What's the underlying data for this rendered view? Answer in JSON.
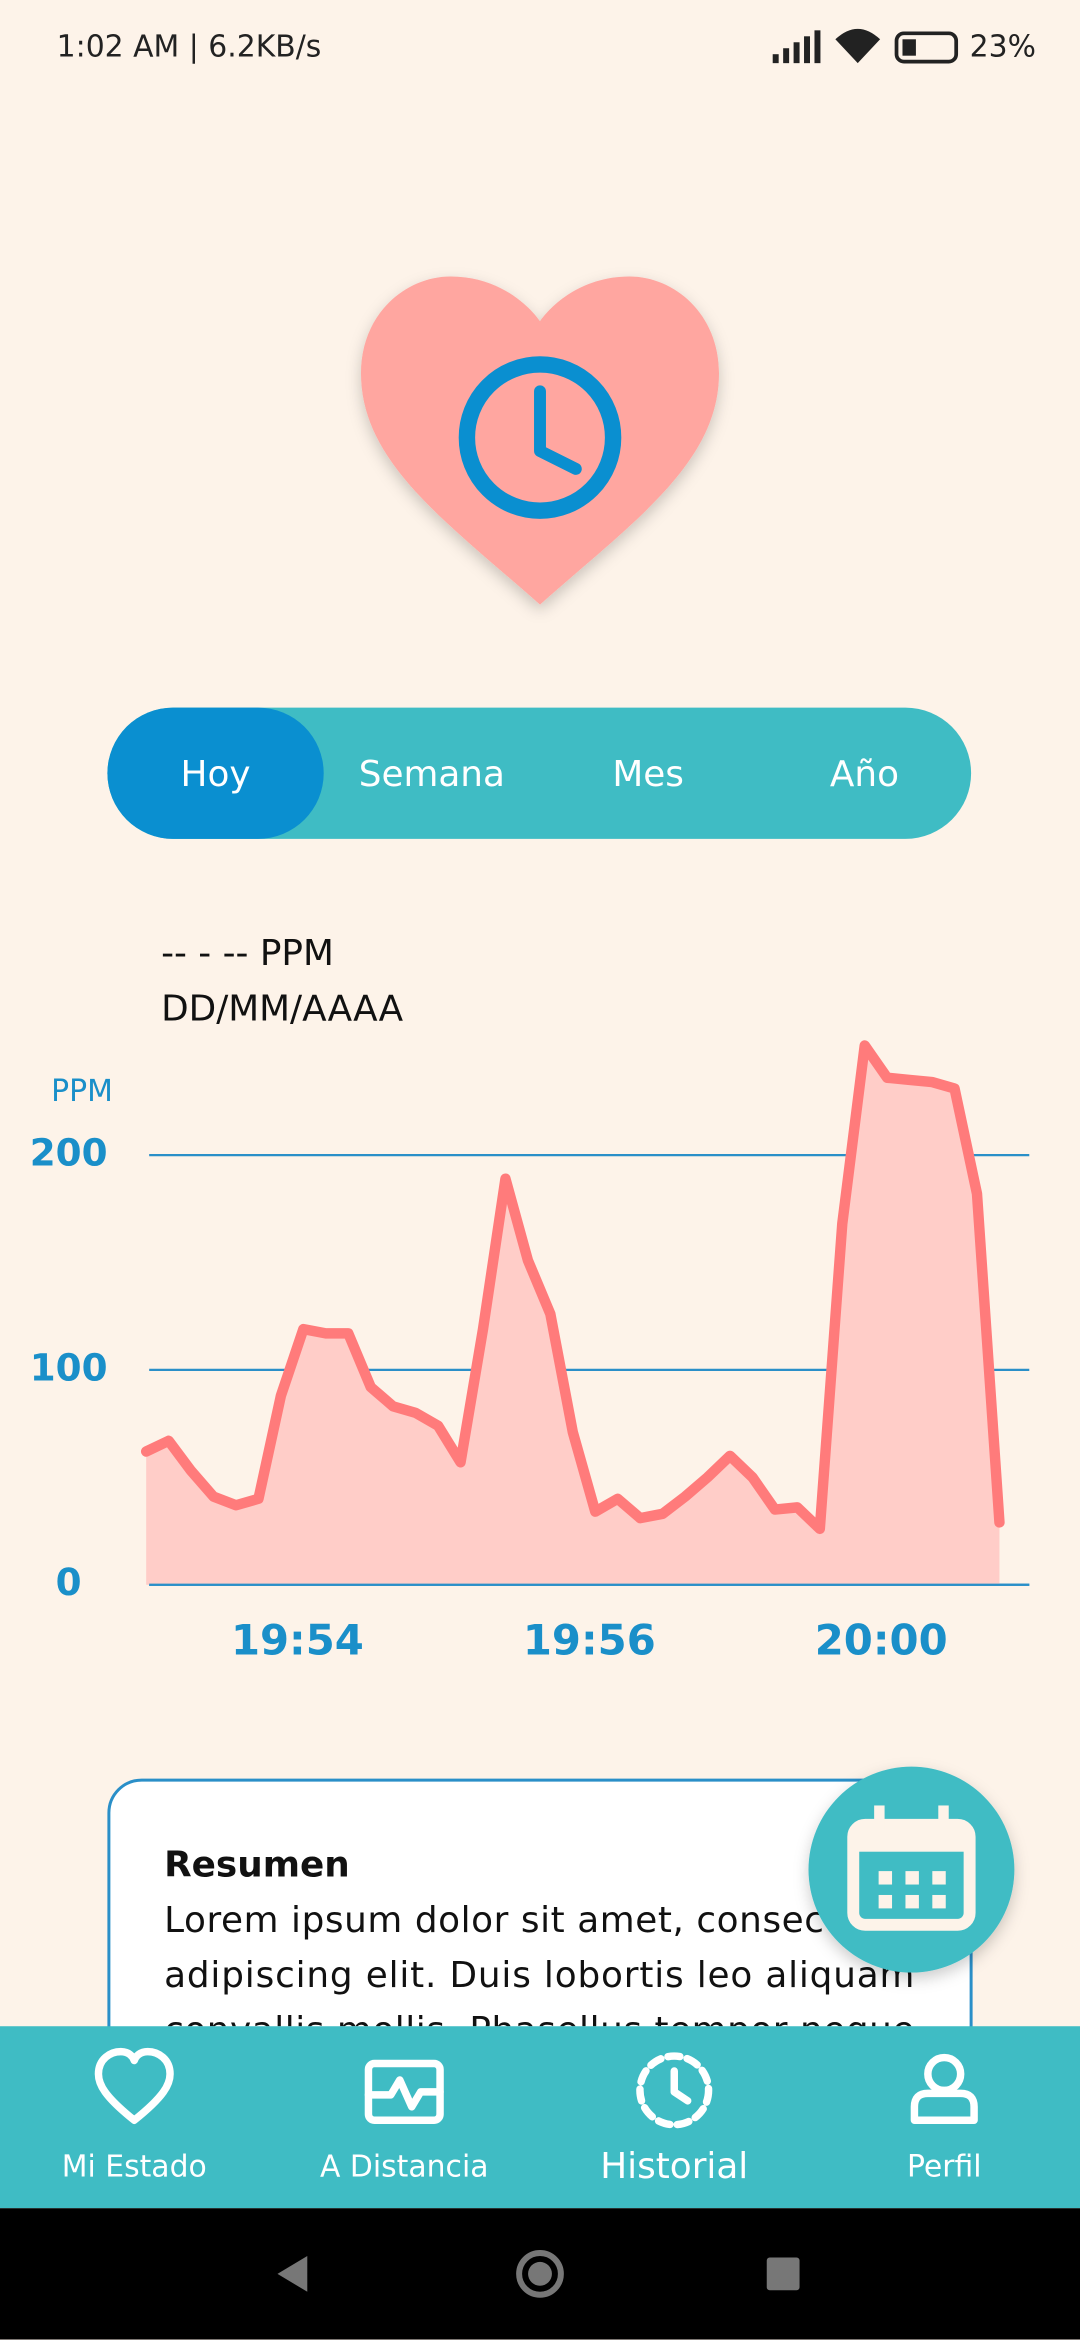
{
  "status_bar": {
    "time": "1:02 AM | 6.2KB/s",
    "battery": "23%"
  },
  "tabs": [
    "Hoy",
    "Semana",
    "Mes",
    "Año"
  ],
  "reading": {
    "value": "-- - -- PPM",
    "date": "DD/MM/AAAA"
  },
  "chart": {
    "type": "area",
    "y_label": "PPM",
    "color": "#ff7b7b",
    "fill": "#ffcdc8",
    "categories": [
      null,
      null,
      null,
      null,
      null,
      null,
      null,
      "19:54",
      null,
      null,
      null,
      null,
      null,
      null,
      null,
      null,
      null,
      null,
      null,
      null,
      "19:56",
      null,
      null,
      null,
      null,
      null,
      null,
      null,
      null,
      null,
      null,
      null,
      null,
      "20:00",
      null,
      null,
      null,
      null,
      null
    ],
    "values": [
      62,
      67,
      53,
      41,
      37,
      40,
      88,
      119,
      117,
      117,
      92,
      83,
      80,
      74,
      57,
      119,
      189,
      151,
      126,
      71,
      34,
      40,
      31,
      33,
      41,
      50,
      60,
      50,
      35,
      36,
      26,
      168,
      251,
      236,
      235,
      234,
      231,
      182,
      29
    ],
    "ylim": [
      0,
      260
    ],
    "yticks": [
      0,
      100,
      200
    ],
    "grid": true
  },
  "summary": {
    "title": "Resumen",
    "lines": [
      "Lorem ipsum dolor sit amet, consectetur",
      "adipiscing elit. Duis lobortis leo aliquam",
      "convallis mollis. Phasellus tempor neque"
    ]
  },
  "nav": [
    "Mi Estado",
    "A Distancia",
    "Historial",
    "Perfil"
  ]
}
